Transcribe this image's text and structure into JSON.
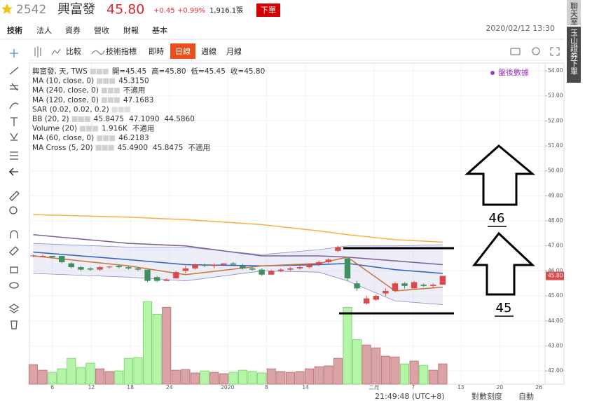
{
  "header": {
    "code": "2542",
    "name": "興富發",
    "price": "45.80",
    "change": "+0.45",
    "change_pct": "+0.99%",
    "volume": "1,916.1張",
    "order_button": "下單"
  },
  "tabs": [
    "技術",
    "法人",
    "資券",
    "營收",
    "財報",
    "基本"
  ],
  "datetime": "2020/02/12 13:30",
  "side_buttons": [
    "聊天室",
    "玉山證券下單"
  ],
  "toolbar": {
    "compare": "比較",
    "indicators": "技術指標",
    "periods": [
      "即時",
      "日線",
      "週線",
      "月線"
    ],
    "active_period": 1
  },
  "after_hours": "盤後數據",
  "legend": [
    {
      "label": "興富發, 天, TWS",
      "values": [
        "開=45.45",
        "高=45.80",
        "低=45.45",
        "收=45.80"
      ],
      "colors": [
        "#c0392b",
        "#c0392b",
        "#c0392b",
        "#c0392b"
      ]
    },
    {
      "label": "MA (10, close, 0)",
      "values": [
        "45.3150"
      ],
      "colors": [
        "#c87533"
      ]
    },
    {
      "label": "MA (240, close, 0)",
      "values": [
        "不適用"
      ],
      "colors": [
        "#333333"
      ]
    },
    {
      "label": "MA (120, close, 0)",
      "values": [
        "47.1683"
      ],
      "colors": [
        "#f0a020"
      ]
    },
    {
      "label": "SAR (0.02, 0.02, 0.2)",
      "values": [],
      "colors": []
    },
    {
      "label": "BB (20, 2)",
      "values": [
        "45.8475",
        "47.1090",
        "44.5860"
      ],
      "colors": [
        "#1f4fa0",
        "#1f4fa0",
        "#1f4fa0"
      ]
    },
    {
      "label": "Volume (20)",
      "values": [
        "1.916K",
        "不適用"
      ],
      "colors": [
        "#c0392b",
        "#333333"
      ]
    },
    {
      "label": "MA (60, close, 0)",
      "values": [
        "46.2183"
      ],
      "colors": [
        "#6a3d8c"
      ]
    },
    {
      "label": "MA Cross (5, 20)",
      "values": [
        "45.4900",
        "45.8475",
        "不適用"
      ],
      "colors": [
        "#1f4fa0",
        "#1f4fa0",
        "#1f2f80"
      ]
    }
  ],
  "annotations": [
    "46",
    "45"
  ],
  "status": {
    "time": "21:49:48 (UTC+8)",
    "log_scale": "對數刻度",
    "auto": "自動"
  },
  "chart_data": {
    "type": "candlestick",
    "up_color": "#d94a4a",
    "down_color": "#3f8f5f",
    "volume_up_color": "#dba3a6",
    "volume_down_color": "#b5f5a8",
    "grid": true,
    "xlim": [
      -0.4,
      53.75
    ],
    "ylim": [
      41.47,
      54.31
    ],
    "volume_ylim": [
      0,
      30300
    ],
    "xticks": [
      {
        "value": 2,
        "label": "6"
      },
      {
        "value": 6.1,
        "label": "12"
      },
      {
        "value": 10.2,
        "label": "18"
      },
      {
        "value": 14.3,
        "label": "24"
      },
      {
        "value": 20.4,
        "label": "2020"
      },
      {
        "value": 24.5,
        "label": "8"
      },
      {
        "value": 28.6,
        "label": "14"
      },
      {
        "value": 35.8,
        "label": "二月"
      },
      {
        "value": 39.9,
        "label": "7"
      },
      {
        "value": 44.9,
        "label": "13"
      },
      {
        "value": 49,
        "label": "20"
      },
      {
        "value": 53.1,
        "label": "26"
      }
    ],
    "yticks": [
      {
        "value": 54,
        "label": "54.00"
      },
      {
        "value": 53,
        "label": "53.00"
      },
      {
        "value": 52,
        "label": "52.00"
      },
      {
        "value": 51,
        "label": "51.00"
      },
      {
        "value": 50,
        "label": "50.00"
      },
      {
        "value": 49,
        "label": "49.00"
      },
      {
        "value": 48,
        "label": "48.00"
      },
      {
        "value": 47,
        "label": "47.00"
      },
      {
        "value": 46,
        "label": "46.00"
      },
      {
        "value": 45,
        "label": "45.00"
      },
      {
        "value": 44,
        "label": "44.00"
      },
      {
        "value": 43,
        "label": "43.00"
      },
      {
        "value": 42,
        "label": "42.00"
      }
    ],
    "open": [
      46.6,
      46.6,
      46.6,
      46.6,
      46.3,
      46.15,
      46.1,
      46.05,
      46.15,
      46.2,
      46.15,
      46.1,
      46.05,
      45.75,
      45.6,
      45.7,
      46.0,
      46.1,
      46.25,
      46.2,
      46.25,
      46.3,
      46.2,
      46.1,
      46.05,
      45.85,
      46.0,
      46.05,
      46.1,
      46.15,
      46.25,
      46.35,
      46.8,
      46.5,
      45.5,
      44.7,
      44.85,
      45.1,
      45.2,
      45.5,
      45.3,
      45.45,
      45.4,
      45.45
    ],
    "high": [
      46.65,
      46.65,
      46.6,
      46.6,
      46.35,
      46.2,
      46.15,
      46.2,
      46.2,
      46.25,
      46.2,
      46.15,
      46.05,
      45.8,
      45.7,
      46.0,
      46.2,
      46.3,
      46.3,
      46.3,
      46.3,
      46.35,
      46.3,
      46.15,
      46.1,
      46.05,
      46.1,
      46.15,
      46.2,
      46.3,
      46.4,
      46.5,
      47.0,
      46.55,
      45.6,
      45.0,
      45.05,
      45.3,
      45.55,
      45.55,
      45.6,
      45.5,
      45.5,
      45.8
    ],
    "low": [
      46.55,
      46.55,
      46.5,
      46.3,
      46.1,
      46.0,
      46.0,
      46.0,
      46.1,
      46.1,
      46.05,
      46.0,
      45.55,
      45.55,
      45.6,
      45.7,
      45.9,
      46.05,
      46.15,
      46.1,
      46.2,
      46.2,
      46.05,
      46.0,
      45.8,
      45.85,
      45.95,
      46.0,
      46.05,
      46.1,
      46.2,
      46.3,
      46.75,
      45.6,
      45.2,
      44.65,
      44.8,
      45.0,
      45.15,
      45.3,
      45.3,
      45.35,
      45.3,
      45.45
    ],
    "close": [
      46.62,
      46.6,
      46.55,
      46.35,
      46.15,
      46.05,
      46.05,
      46.15,
      46.17,
      46.15,
      46.1,
      46.05,
      45.6,
      45.6,
      45.65,
      45.95,
      46.1,
      46.25,
      46.2,
      46.25,
      46.3,
      46.25,
      46.1,
      46.05,
      45.85,
      46.0,
      46.05,
      46.1,
      46.15,
      46.25,
      46.35,
      46.45,
      46.95,
      45.7,
      45.3,
      44.9,
      45.0,
      45.2,
      45.5,
      45.4,
      45.55,
      45.4,
      45.45,
      45.8
    ],
    "volume": [
      1850,
      1320,
      1120,
      1450,
      2440,
      1580,
      1980,
      1450,
      1190,
      1250,
      2440,
      2510,
      7790,
      6600,
      7260,
      1320,
      1390,
      1060,
      1250,
      1120,
      990,
      1120,
      1320,
      1190,
      1060,
      1450,
      1190,
      1120,
      1190,
      1450,
      1650,
      1720,
      2440,
      7260,
      4220,
      3700,
      3430,
      2640,
      2570,
      1910,
      2180,
      1780,
      1320,
      1916.1
    ],
    "band": {
      "color": "#c9cbe8",
      "x": [
        0,
        10,
        16,
        24,
        30,
        33,
        38,
        43
      ],
      "upper": [
        47.1,
        46.95,
        46.95,
        46.65,
        46.85,
        47.0,
        47.0,
        47.05
      ],
      "lower": [
        45.9,
        45.75,
        45.6,
        46.0,
        45.95,
        45.6,
        44.8,
        44.65
      ]
    },
    "lines": [
      {
        "color": "#f5b041",
        "x": [
          0,
          10,
          16,
          24,
          30,
          33,
          38,
          43
        ],
        "values": [
          48.25,
          48.15,
          48.05,
          47.85,
          47.6,
          47.45,
          47.25,
          47.15
        ]
      },
      {
        "color": "#7d5d9a",
        "x": [
          0,
          10,
          16,
          24,
          30,
          33,
          38,
          43
        ],
        "values": [
          47.45,
          47.1,
          47.0,
          46.6,
          46.6,
          46.55,
          46.4,
          46.25
        ]
      },
      {
        "color": "#2f5fc0",
        "x": [
          0,
          10,
          16,
          24,
          30,
          33,
          38,
          43
        ],
        "values": [
          46.75,
          46.45,
          46.25,
          46.2,
          46.25,
          46.3,
          46.05,
          45.9
        ]
      },
      {
        "color": "#c87533",
        "x": [
          0,
          10,
          16,
          24,
          30,
          33,
          38,
          43
        ],
        "values": [
          46.6,
          46.2,
          45.85,
          46.2,
          46.3,
          46.55,
          45.2,
          45.35
        ]
      }
    ]
  }
}
